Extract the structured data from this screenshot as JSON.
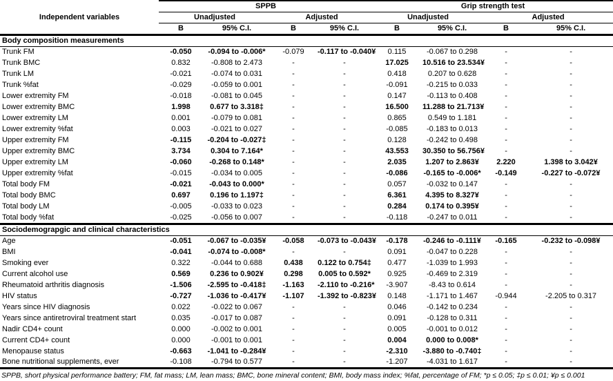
{
  "header": {
    "independent_variables": "Independent variables",
    "group1": "SPPB",
    "group2": "Grip strength test",
    "sub": [
      "Unadjusted",
      "Adjusted",
      "Unadjusted",
      "Adjusted"
    ],
    "cols": [
      "B",
      "95% C.I.",
      "B",
      "95% C.I.",
      "B",
      "95% C.I.",
      "B",
      "95% C.I."
    ]
  },
  "sections": [
    {
      "title": "Body composition measurements",
      "rows": [
        {
          "label": "Trunk FM",
          "values": [
            "-0.050",
            "-0.094 to -0.006*",
            "-0.079",
            "-0.117 to -0.040¥",
            "0.115",
            "-0.067 to 0.298",
            "-",
            "-"
          ],
          "bold": [
            1,
            1,
            0,
            1,
            0,
            0,
            0,
            0
          ]
        },
        {
          "label": "Trunk BMC",
          "values": [
            "0.832",
            "-0.808 to 2.473",
            "-",
            "-",
            "17.025",
            "10.516 to 23.534¥",
            "-",
            "-"
          ],
          "bold": [
            0,
            0,
            0,
            0,
            1,
            1,
            0,
            0
          ]
        },
        {
          "label": "Trunk LM",
          "values": [
            "-0.021",
            "-0.074 to 0.031",
            "-",
            "-",
            "0.418",
            "0.207 to 0.628",
            "-",
            "-"
          ],
          "bold": [
            0,
            0,
            0,
            0,
            0,
            0,
            0,
            0
          ]
        },
        {
          "label": "Trunk %fat",
          "values": [
            "-0.029",
            "-0.059 to 0.001",
            "-",
            "-",
            "-0.091",
            "-0.215 to 0.033",
            "-",
            "-"
          ],
          "bold": [
            0,
            0,
            0,
            0,
            0,
            0,
            0,
            0
          ]
        },
        {
          "label": "Lower extremity FM",
          "values": [
            "-0.018",
            "-0.081 to 0.045",
            "-",
            "-",
            "0.147",
            "-0.113 to 0.408",
            "-",
            "-"
          ],
          "bold": [
            0,
            0,
            0,
            0,
            0,
            0,
            0,
            0
          ]
        },
        {
          "label": "Lower extremity BMC",
          "values": [
            "1.998",
            "0.677 to 3.318‡",
            "-",
            "-",
            "16.500",
            "11.288 to 21.713¥",
            "-",
            "-"
          ],
          "bold": [
            1,
            1,
            0,
            0,
            1,
            1,
            0,
            0
          ]
        },
        {
          "label": "Lower extremity LM",
          "values": [
            "0.001",
            "-0.079 to 0.081",
            "-",
            "-",
            "0.865",
            "0.549 to 1.181",
            "-",
            "-"
          ],
          "bold": [
            0,
            0,
            0,
            0,
            0,
            0,
            0,
            0
          ]
        },
        {
          "label": "Lower extremity %fat",
          "values": [
            "0.003",
            "-0.021 to 0.027",
            "-",
            "-",
            "-0.085",
            "-0.183 to 0.013",
            "-",
            "-"
          ],
          "bold": [
            0,
            0,
            0,
            0,
            0,
            0,
            0,
            0
          ]
        },
        {
          "label": "Upper extremity FM",
          "values": [
            "-0.115",
            "-0.204 to -0.027‡",
            "-",
            "-",
            "0.128",
            "-0.242 to 0.498",
            "-",
            "-"
          ],
          "bold": [
            1,
            1,
            0,
            0,
            0,
            0,
            0,
            0
          ]
        },
        {
          "label": "Upper extremity BMC",
          "values": [
            "3.734",
            "0.304 to 7.164*",
            "-",
            "-",
            "43.553",
            "30.350 to 56.756¥",
            "-",
            "-"
          ],
          "bold": [
            1,
            1,
            0,
            0,
            1,
            1,
            0,
            0
          ]
        },
        {
          "label": "Upper extremity LM",
          "values": [
            "-0.060",
            "-0.268 to 0.148*",
            "-",
            "-",
            "2.035",
            "1.207 to 2.863¥",
            "2.220",
            "1.398 to 3.042¥"
          ],
          "bold": [
            1,
            1,
            0,
            0,
            1,
            1,
            1,
            1
          ]
        },
        {
          "label": "Upper extremity %fat",
          "values": [
            "-0.015",
            "-0.034 to 0.005",
            "-",
            "-",
            "-0.086",
            "-0.165 to -0.006*",
            "-0.149",
            "-0.227 to -0.072¥"
          ],
          "bold": [
            0,
            0,
            0,
            0,
            1,
            1,
            1,
            1
          ]
        },
        {
          "label": "Total body FM",
          "values": [
            "-0.021",
            "-0.043 to 0.000*",
            "-",
            "-",
            "0.057",
            "-0.032 to 0.147",
            "-",
            "-"
          ],
          "bold": [
            1,
            1,
            0,
            0,
            0,
            0,
            0,
            0
          ]
        },
        {
          "label": "Total body BMC",
          "values": [
            "0.697",
            "0.196 to 1.197‡",
            "-",
            "-",
            "6.361",
            "4.395 to 8.327¥",
            "-",
            "-"
          ],
          "bold": [
            1,
            1,
            0,
            0,
            1,
            1,
            0,
            0
          ]
        },
        {
          "label": "Total body LM",
          "values": [
            "-0.005",
            "-0.033 to 0.023",
            "-",
            "-",
            "0.284",
            "0.174 to 0.395¥",
            "-",
            "-"
          ],
          "bold": [
            0,
            0,
            0,
            0,
            1,
            1,
            0,
            0
          ]
        },
        {
          "label": "Total body %fat",
          "values": [
            "-0.025",
            "-0.056 to 0.007",
            "-",
            "-",
            "-0.118",
            "-0.247 to 0.011",
            "-",
            "-"
          ],
          "bold": [
            0,
            0,
            0,
            0,
            0,
            0,
            0,
            0
          ]
        }
      ]
    },
    {
      "title": "Sociodemograpgic and clinical characteristics",
      "rows": [
        {
          "label": "Age",
          "values": [
            "-0.051",
            "-0.067 to -0.035¥",
            "-0.058",
            "-0.073 to -0.043¥",
            "-0.178",
            "-0.246 to -0.111¥",
            "-0.165",
            "-0.232 to -0.098¥"
          ],
          "bold": [
            1,
            1,
            1,
            1,
            1,
            1,
            1,
            1
          ]
        },
        {
          "label": "BMI",
          "values": [
            "-0.041",
            "-0.074 to -0.008*",
            "-",
            "-",
            "0.091",
            "-0.047 to 0.228",
            "-",
            "-"
          ],
          "bold": [
            1,
            1,
            0,
            0,
            0,
            0,
            0,
            0
          ]
        },
        {
          "label": "Smoking ever",
          "values": [
            "0.322",
            "-0.044 to 0.688",
            "0.438",
            "0.122 to 0.754‡",
            "0.477",
            "-1.039 to 1.993",
            "-",
            "-"
          ],
          "bold": [
            0,
            0,
            1,
            1,
            0,
            0,
            0,
            0
          ]
        },
        {
          "label": "Current alcohol use",
          "values": [
            "0.569",
            "0.236 to 0.902¥",
            "0.298",
            "0.005 to 0.592*",
            "0.925",
            "-0.469 to 2.319",
            "-",
            "-"
          ],
          "bold": [
            1,
            1,
            1,
            1,
            0,
            0,
            0,
            0
          ]
        },
        {
          "label": "Rheumatoid arthritis diagnosis",
          "values": [
            "-1.506",
            "-2.595 to -0.418‡",
            "-1.163",
            "-2.110 to -0.216*",
            "-3.907",
            "-8.43 to 0.614",
            "-",
            "-"
          ],
          "bold": [
            1,
            1,
            1,
            1,
            0,
            0,
            0,
            0
          ]
        },
        {
          "label": "HIV status",
          "values": [
            "-0.727",
            "-1.036 to -0.417¥",
            "-1.107",
            "-1.392 to -0.823¥",
            "0.148",
            "-1.171 to 1.467",
            "-0.944",
            "-2.205 to 0.317"
          ],
          "bold": [
            1,
            1,
            1,
            1,
            0,
            0,
            0,
            0
          ]
        },
        {
          "label": "Years since HIV diagnosis",
          "values": [
            "0.022",
            "-0.022 to 0.067",
            "-",
            "-",
            "0.046",
            "-0.142 to 0.234",
            "-",
            "-"
          ],
          "bold": [
            0,
            0,
            0,
            0,
            0,
            0,
            0,
            0
          ]
        },
        {
          "label": "Years since antiretroviral treatment start",
          "values": [
            "0.035",
            "-0.017 to 0.087",
            "-",
            "-",
            "0.091",
            "-0.128 to 0.311",
            "-",
            "-"
          ],
          "bold": [
            0,
            0,
            0,
            0,
            0,
            0,
            0,
            0
          ]
        },
        {
          "label": "Nadir CD4+ count",
          "values": [
            "0.000",
            "-0.002 to 0.001",
            "-",
            "-",
            "0.005",
            "-0.001 to 0.012",
            "-",
            "-"
          ],
          "bold": [
            0,
            0,
            0,
            0,
            0,
            0,
            0,
            0
          ]
        },
        {
          "label": "Current CD4+ count",
          "values": [
            "0.000",
            "-0.001 to 0.001",
            "-",
            "-",
            "0.004",
            "0.000 to 0.008*",
            "-",
            "-"
          ],
          "bold": [
            0,
            0,
            0,
            0,
            1,
            1,
            0,
            0
          ]
        },
        {
          "label": "Menopause status",
          "values": [
            "-0.663",
            "-1.041 to -0.284¥",
            "-",
            "-",
            "-2.310",
            "-3.880 to -0.740‡",
            "-",
            "-"
          ],
          "bold": [
            1,
            1,
            0,
            0,
            1,
            1,
            0,
            0
          ]
        },
        {
          "label": "Bone nutritional supplements, ever",
          "values": [
            "-0.108",
            "-0.794 to 0.577",
            "-",
            "-",
            "-1.207",
            "-4.031 to 1.617",
            "-",
            "-"
          ],
          "bold": [
            0,
            0,
            0,
            0,
            0,
            0,
            0,
            0
          ]
        }
      ]
    }
  ],
  "footnote": "SPPB, short physical performance battery; FM, fat mass; LM, lean mass; BMC, bone mineral content; BMI, body mass index; %fat, percentage of FM; *p ≤ 0.05; ‡p ≤ 0.01; ¥p ≤ 0.001"
}
